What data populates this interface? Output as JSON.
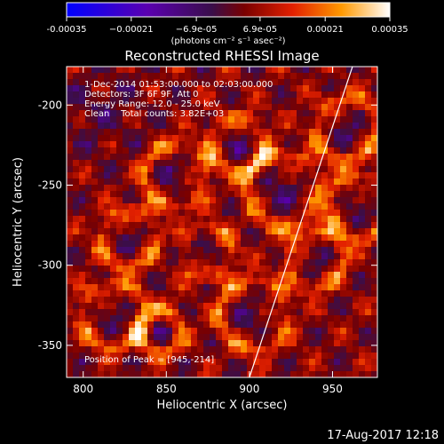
{
  "chart_data": {
    "type": "heatmap",
    "title": "Reconstructed RHESSI Image",
    "xlabel": "Heliocentric X (arcsec)",
    "ylabel": "Heliocentric Y (arcsec)",
    "xlim": [
      790,
      977
    ],
    "ylim": [
      -370,
      -176
    ],
    "x_ticks": [
      800,
      850,
      900,
      950
    ],
    "y_ticks": [
      -200,
      -250,
      -300,
      -350
    ],
    "colorbar": {
      "range": [
        -0.00035,
        0.00035
      ],
      "tick_values": [
        -0.00035,
        -0.00021,
        -6.9e-05,
        6.9e-05,
        0.00021,
        0.00035
      ],
      "tick_labels": [
        "-0.00035",
        "−0.00021",
        "−6.9e-05",
        "6.9e-05",
        "0.00021",
        "0.00035"
      ],
      "unit_label": "(photons cm⁻² s⁻¹ asec⁻²)"
    },
    "annotations": [
      "1-Dec-2014 01:53:00.000 to 02:03:00.000",
      "Detectors: 3F 6F 9F, Att 0",
      "Energy Range: 12.0 - 25.0 keV",
      "Clean    Total counts: 3.82E+03"
    ],
    "peak_label": "Position of Peak = [945,-214]",
    "peak": [
      945,
      -214
    ],
    "limb_line": [
      [
        900,
        -370
      ],
      [
        962,
        -176
      ]
    ],
    "colors": {
      "colormap": [
        "#0000ff",
        "#5a00b0",
        "#3a0e4a",
        "#7a0000",
        "#e32000",
        "#ff9900",
        "#ffffff"
      ]
    }
  },
  "footer": {
    "date": "17-Aug-2017 12:18"
  }
}
